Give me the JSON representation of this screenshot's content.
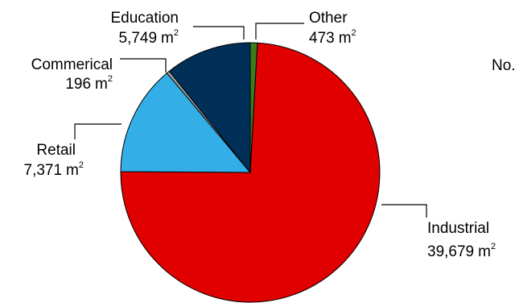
{
  "chart_data": {
    "type": "pie",
    "unit": "m",
    "unit_superscript": "2",
    "slices": [
      {
        "name": "Industrial",
        "value": 39679,
        "value_label": "39,679",
        "color": "#e00000"
      },
      {
        "name": "Retail",
        "value": 7371,
        "value_label": "7,371",
        "color": "#33aee6"
      },
      {
        "name": "Commerical",
        "value": 196,
        "value_label": "196",
        "color": "#a6a6a6"
      },
      {
        "name": "Education",
        "value": 5749,
        "value_label": "5,749",
        "color": "#003057"
      },
      {
        "name": "Other",
        "value": 473,
        "value_label": "473",
        "color": "#3a7d1e"
      }
    ],
    "partial_text": "No.",
    "start_angle": "top, clockwise"
  }
}
